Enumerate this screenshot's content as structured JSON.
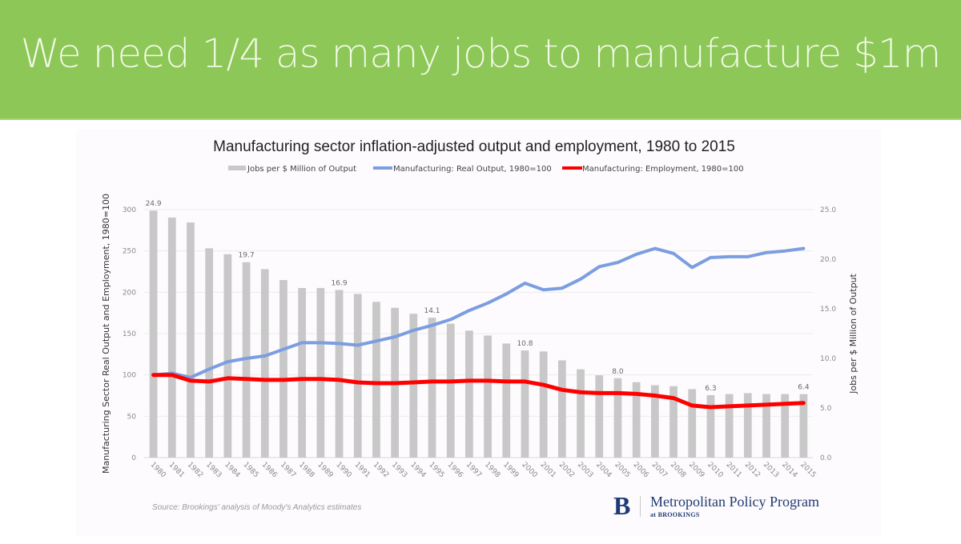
{
  "slide": {
    "title": "We need 1/4 as many jobs to manufacture $1m",
    "banner_color": "#8dc757"
  },
  "footer": {
    "source": "Source: Brookings' analysis of Moody's Analytics estimates",
    "logo_letter": "B",
    "logo_name": "Metropolitan Policy Program",
    "logo_sub": "at BROOKINGS"
  },
  "chart_data": {
    "type": "bar",
    "title": "Manufacturing sector inflation-adjusted output and employment, 1980 to 2015",
    "ylabel": "Manufacturing Sector Real Output and Employment, 1980=100",
    "y2label": "Jobs per $ Million of Output",
    "xlabel": "",
    "ylim": [
      0,
      300
    ],
    "y2lim": [
      0,
      25
    ],
    "yticks": [
      "0",
      "50",
      "100",
      "150",
      "200",
      "250",
      "300"
    ],
    "y2ticks": [
      "0.0",
      "5.0",
      "10.0",
      "15.0",
      "20.0",
      "25.0"
    ],
    "grid": true,
    "legend_position": "top",
    "categories": [
      "1980",
      "1981",
      "1982",
      "1983",
      "1984",
      "1985",
      "1986",
      "1987",
      "1988",
      "1989",
      "1990",
      "1991",
      "1992",
      "1993",
      "1994",
      "1995",
      "1996",
      "1997",
      "1998",
      "1999",
      "2000",
      "2001",
      "2002",
      "2003",
      "2004",
      "2005",
      "2006",
      "2007",
      "2008",
      "2009",
      "2010",
      "2011",
      "2012",
      "2013",
      "2014",
      "2015"
    ],
    "series": [
      {
        "name": "Jobs per $ Million of Output",
        "type": "bar",
        "axis": "right",
        "color": "#c8c8c8",
        "values": [
          24.9,
          24.2,
          23.7,
          21.1,
          20.5,
          19.7,
          19.0,
          17.9,
          17.1,
          17.1,
          16.9,
          16.5,
          15.7,
          15.1,
          14.5,
          14.1,
          13.5,
          12.8,
          12.3,
          11.5,
          10.8,
          10.7,
          9.8,
          8.9,
          8.3,
          8.0,
          7.6,
          7.3,
          7.2,
          6.9,
          6.3,
          6.4,
          6.5,
          6.4,
          6.4,
          6.4
        ],
        "data_labels": {
          "1980": "24.9",
          "1985": "19.7",
          "1990": "16.9",
          "1995": "14.1",
          "2000": "10.8",
          "2005": "8.0",
          "2010": "6.3",
          "2015": "6.4"
        }
      },
      {
        "name": "Manufacturing: Real Output, 1980=100",
        "type": "line",
        "axis": "left",
        "color": "#7b9ee0",
        "values": [
          100,
          102,
          97,
          107,
          116,
          120,
          123,
          131,
          139,
          139,
          138,
          136,
          141,
          146,
          154,
          160,
          167,
          178,
          187,
          198,
          211,
          203,
          205,
          216,
          231,
          236,
          246,
          253,
          247,
          230,
          242,
          243,
          243,
          248,
          250,
          253
        ]
      },
      {
        "name": "Manufacturing: Employment, 1980=100",
        "type": "line",
        "axis": "left",
        "color": "#ff0000",
        "values": [
          100,
          100,
          93,
          92,
          96,
          95,
          94,
          94,
          95,
          95,
          94,
          91,
          90,
          90,
          91,
          92,
          92,
          93,
          93,
          92,
          92,
          88,
          82,
          79,
          78,
          78,
          77,
          75,
          72,
          63,
          61,
          62,
          63,
          64,
          65,
          66
        ]
      }
    ]
  }
}
